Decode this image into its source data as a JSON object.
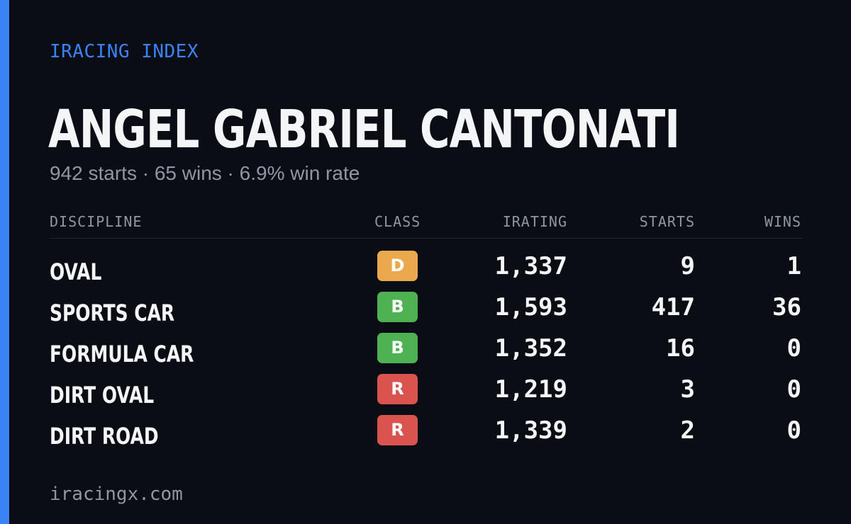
{
  "brand": "IRACING INDEX",
  "driver_name": "ANGEL GABRIEL CANTONATI",
  "summary": "942 starts · 65 wins · 6.9% win rate",
  "columns": {
    "discipline": "DISCIPLINE",
    "class": "CLASS",
    "irating": "IRATING",
    "starts": "STARTS",
    "wins": "WINS"
  },
  "rows": [
    {
      "discipline": "OVAL",
      "class": "D",
      "irating": "1,337",
      "starts": "9",
      "wins": "1"
    },
    {
      "discipline": "SPORTS CAR",
      "class": "B",
      "irating": "1,593",
      "starts": "417",
      "wins": "36"
    },
    {
      "discipline": "FORMULA CAR",
      "class": "B",
      "irating": "1,352",
      "starts": "16",
      "wins": "0"
    },
    {
      "discipline": "DIRT OVAL",
      "class": "R",
      "irating": "1,219",
      "starts": "3",
      "wins": "0"
    },
    {
      "discipline": "DIRT ROAD",
      "class": "R",
      "irating": "1,339",
      "starts": "2",
      "wins": "0"
    }
  ],
  "footer": "iracingx.com",
  "colors": {
    "background": "#0a0d14",
    "accent": "#3b82f6",
    "class_d": "#e9a94c",
    "class_b": "#4fb252",
    "class_r": "#d9534f"
  }
}
